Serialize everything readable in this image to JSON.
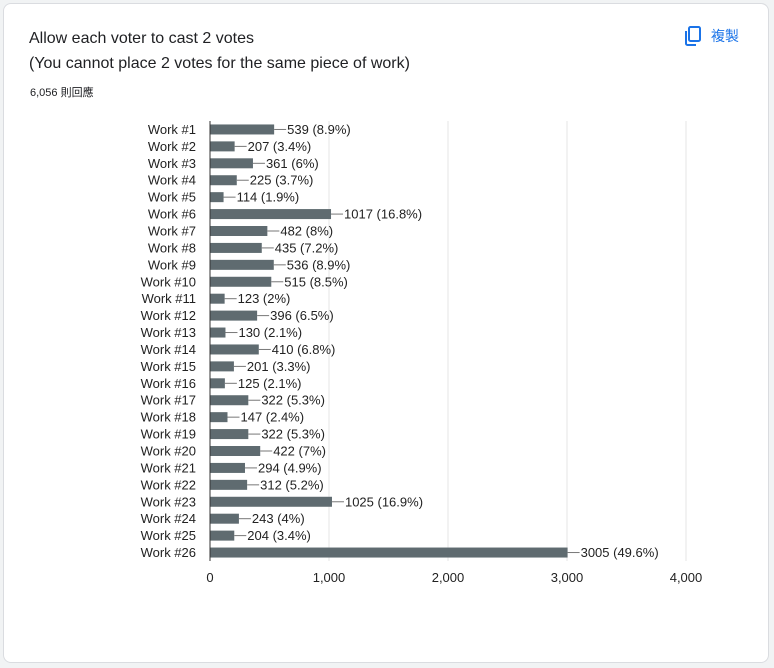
{
  "card": {
    "title_line1": "Allow each voter to cast 2 votes",
    "title_line2": "(You cannot place 2 votes for the same piece of work)",
    "responses": "6,056 則回應",
    "copy_label": "複製",
    "copy_icon": "copy-icon"
  },
  "colors": {
    "bar": "#5f6b70",
    "accent": "#1a73e8"
  },
  "chart_data": {
    "type": "bar",
    "orientation": "horizontal",
    "categories": [
      "Work #1",
      "Work #2",
      "Work #3",
      "Work #4",
      "Work #5",
      "Work #6",
      "Work #7",
      "Work #8",
      "Work #9",
      "Work #10",
      "Work #11",
      "Work #12",
      "Work #13",
      "Work #14",
      "Work #15",
      "Work #16",
      "Work #17",
      "Work #18",
      "Work #19",
      "Work #20",
      "Work #21",
      "Work #22",
      "Work #23",
      "Work #24",
      "Work #25",
      "Work #26"
    ],
    "values": [
      539,
      207,
      361,
      225,
      114,
      1017,
      482,
      435,
      536,
      515,
      123,
      396,
      130,
      410,
      201,
      125,
      322,
      147,
      322,
      422,
      294,
      312,
      1025,
      243,
      204,
      3005
    ],
    "data_labels": [
      "539 (8.9%)",
      "207 (3.4%)",
      "361 (6%)",
      "225 (3.7%)",
      "114 (1.9%)",
      "1017 (16.8%)",
      "482 (8%)",
      "435 (7.2%)",
      "536 (8.9%)",
      "515 (8.5%)",
      "123 (2%)",
      "396 (6.5%)",
      "130 (2.1%)",
      "410 (6.8%)",
      "201 (3.3%)",
      "125 (2.1%)",
      "322 (5.3%)",
      "147 (2.4%)",
      "322 (5.3%)",
      "422 (7%)",
      "294 (4.9%)",
      "312 (5.2%)",
      "1025 (16.9%)",
      "243 (4%)",
      "204 (3.4%)",
      "3005 (49.6%)"
    ],
    "xlim": [
      0,
      4000
    ],
    "xticks": [
      0,
      1000,
      2000,
      3000,
      4000
    ],
    "xtick_labels": [
      "0",
      "1,000",
      "2,000",
      "3,000",
      "4,000"
    ],
    "grid": true
  }
}
